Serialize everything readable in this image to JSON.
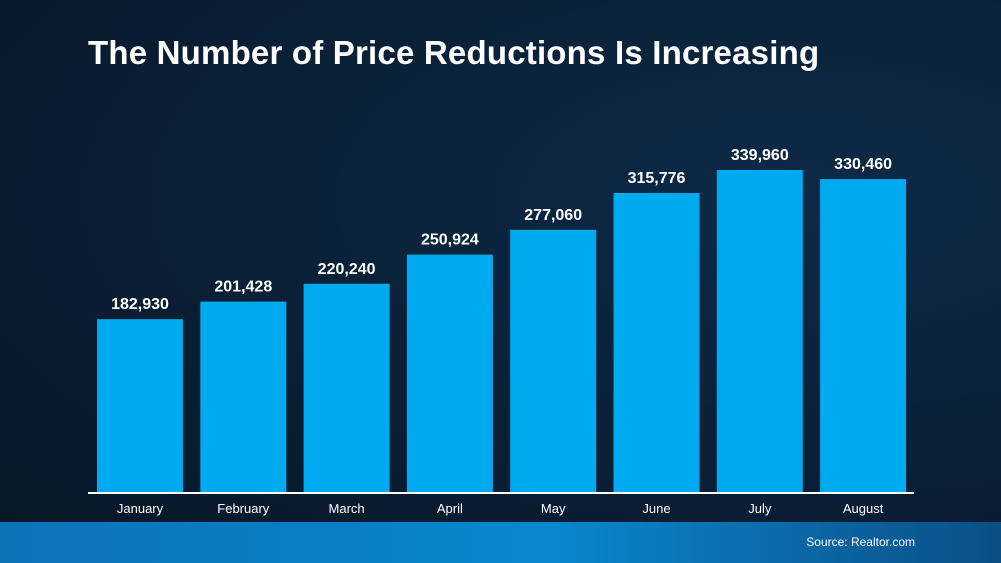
{
  "slide": {
    "title": "The Number of Price Reductions Is Increasing",
    "source": "Source: Realtor.com"
  },
  "colors": {
    "bar": "#00aaf0",
    "axis": "#ffffff",
    "background": "#0a2138",
    "footer": "#0a86cf"
  },
  "chart_data": {
    "type": "bar",
    "title": "The Number of Price Reductions Is Increasing",
    "xlabel": "",
    "ylabel": "",
    "ylim": [
      0,
      340000
    ],
    "grid": false,
    "legend": "none",
    "categories": [
      "January",
      "February",
      "March",
      "April",
      "May",
      "June",
      "July",
      "August"
    ],
    "values": [
      182930,
      201428,
      220240,
      250924,
      277060,
      315776,
      339960,
      330460
    ],
    "data_labels": [
      "182,930",
      "201,428",
      "220,240",
      "250,924",
      "277,060",
      "315,776",
      "339,960",
      "330,460"
    ]
  }
}
